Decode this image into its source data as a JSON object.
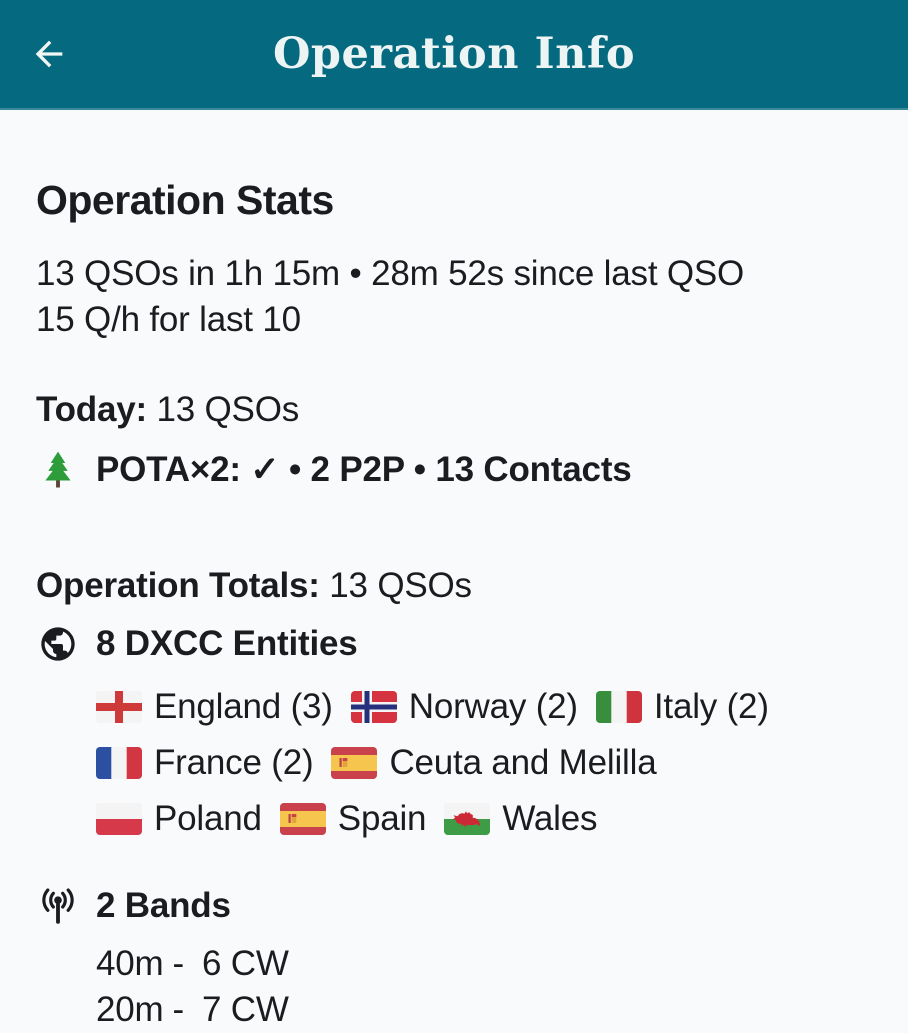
{
  "colors": {
    "header_bg": "#05697F",
    "body_bg": "#F9FAFC",
    "text": "#1B1C20",
    "title_text": "#EDF4F4",
    "tree_green": "#2E9C3A"
  },
  "header": {
    "title": "Operation Info",
    "back_icon": "arrow-left-icon"
  },
  "stats": {
    "heading": "Operation Stats",
    "summary_line1": "13 QSOs in 1h 15m • 28m 52s since last QSO",
    "summary_line2": "15 Q/h for last 10",
    "today_label": "Today:",
    "today_value": "13 QSOs",
    "pota_icon": "evergreen-tree-icon",
    "pota_text": "POTA×2: ✓ • 2 P2P • 13 Contacts"
  },
  "totals": {
    "label": "Operation Totals:",
    "value": "13 QSOs",
    "dxcc_icon": "globe-icon",
    "dxcc_heading": "8 DXCC Entities",
    "entity_rows": [
      [
        {
          "flag": "england",
          "name": "England (3)"
        },
        {
          "flag": "norway",
          "name": "Norway (2)"
        },
        {
          "flag": "italy",
          "name": "Italy (2)"
        }
      ],
      [
        {
          "flag": "france",
          "name": "France (2)"
        },
        {
          "flag": "spain",
          "name": "Ceuta and Melilla"
        }
      ],
      [
        {
          "flag": "poland",
          "name": "Poland"
        },
        {
          "flag": "spain",
          "name": "Spain"
        },
        {
          "flag": "wales",
          "name": "Wales"
        }
      ]
    ],
    "bands_icon": "antenna-icon",
    "bands_heading": "2 Bands",
    "bands": [
      {
        "band": "40m",
        "separator": "-",
        "value": "6 CW"
      },
      {
        "band": "20m",
        "separator": "-",
        "value": "7 CW"
      }
    ]
  }
}
